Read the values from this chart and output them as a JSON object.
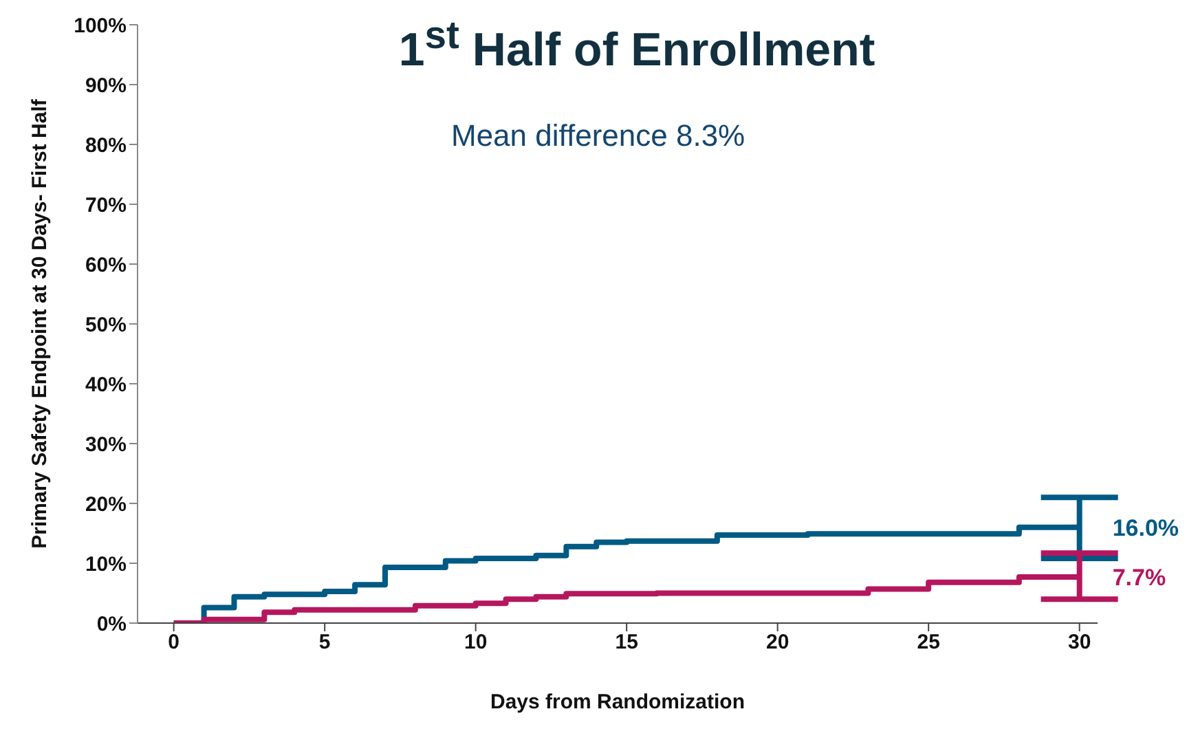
{
  "chart_data": {
    "type": "step",
    "title": "1$^{st}$ Half of Enrollment",
    "xlabel": "Days from Randomization",
    "ylabel": "Primary Safety Endpoint at 30 Days- First Half",
    "annotations": [
      "Mean difference 8.3%"
    ],
    "xlim": [
      -1.2,
      30.6
    ],
    "xticks": [
      0,
      5,
      10,
      15,
      20,
      25,
      30
    ],
    "ylim": [
      0,
      100
    ],
    "yticks": [
      {
        "value": 0,
        "label": "0%"
      },
      {
        "value": 10,
        "label": "10%"
      },
      {
        "value": 20,
        "label": "20%"
      },
      {
        "value": 30,
        "label": "30%"
      },
      {
        "value": 40,
        "label": "40%"
      },
      {
        "value": 50,
        "label": "50%"
      },
      {
        "value": 60,
        "label": "60%"
      },
      {
        "value": 70,
        "label": "70%"
      },
      {
        "value": 80,
        "label": "80%"
      },
      {
        "value": 90,
        "label": "90%"
      },
      {
        "value": 100,
        "label": "100%"
      }
    ],
    "marker": "none",
    "line_style": "solid",
    "series": [
      {
        "color": "#005a84",
        "x": [
          0,
          1,
          2,
          3,
          5,
          6,
          7,
          9,
          10,
          12,
          13,
          14,
          15,
          18,
          21,
          28,
          30
        ],
        "values": [
          0,
          2.6,
          4.4,
          4.8,
          5.3,
          6.4,
          9.3,
          10.4,
          10.8,
          11.3,
          12.8,
          13.5,
          13.7,
          14.7,
          14.9,
          16.0,
          16.0
        ],
        "errors": [
          null,
          null,
          null,
          null,
          null,
          null,
          null,
          null,
          null,
          null,
          null,
          null,
          null,
          null,
          null,
          null,
          [
            10.8,
            21.0
          ]
        ],
        "value_labels": [
          null,
          null,
          null,
          null,
          null,
          null,
          null,
          null,
          null,
          null,
          null,
          null,
          null,
          null,
          null,
          null,
          "16.0%"
        ]
      },
      {
        "color": "#b5175e",
        "x": [
          0,
          1,
          3,
          4,
          8,
          10,
          11,
          12,
          13,
          16,
          23,
          25,
          28,
          30
        ],
        "values": [
          0,
          0.6,
          1.8,
          2.2,
          2.9,
          3.3,
          4.0,
          4.4,
          4.9,
          5.0,
          5.7,
          6.8,
          7.7,
          7.7
        ],
        "errors": [
          null,
          null,
          null,
          null,
          null,
          null,
          null,
          null,
          null,
          null,
          null,
          null,
          null,
          [
            4.0,
            11.7
          ]
        ],
        "value_labels": [
          null,
          null,
          null,
          null,
          null,
          null,
          null,
          null,
          null,
          null,
          null,
          null,
          null,
          "7.7%"
        ]
      }
    ]
  }
}
